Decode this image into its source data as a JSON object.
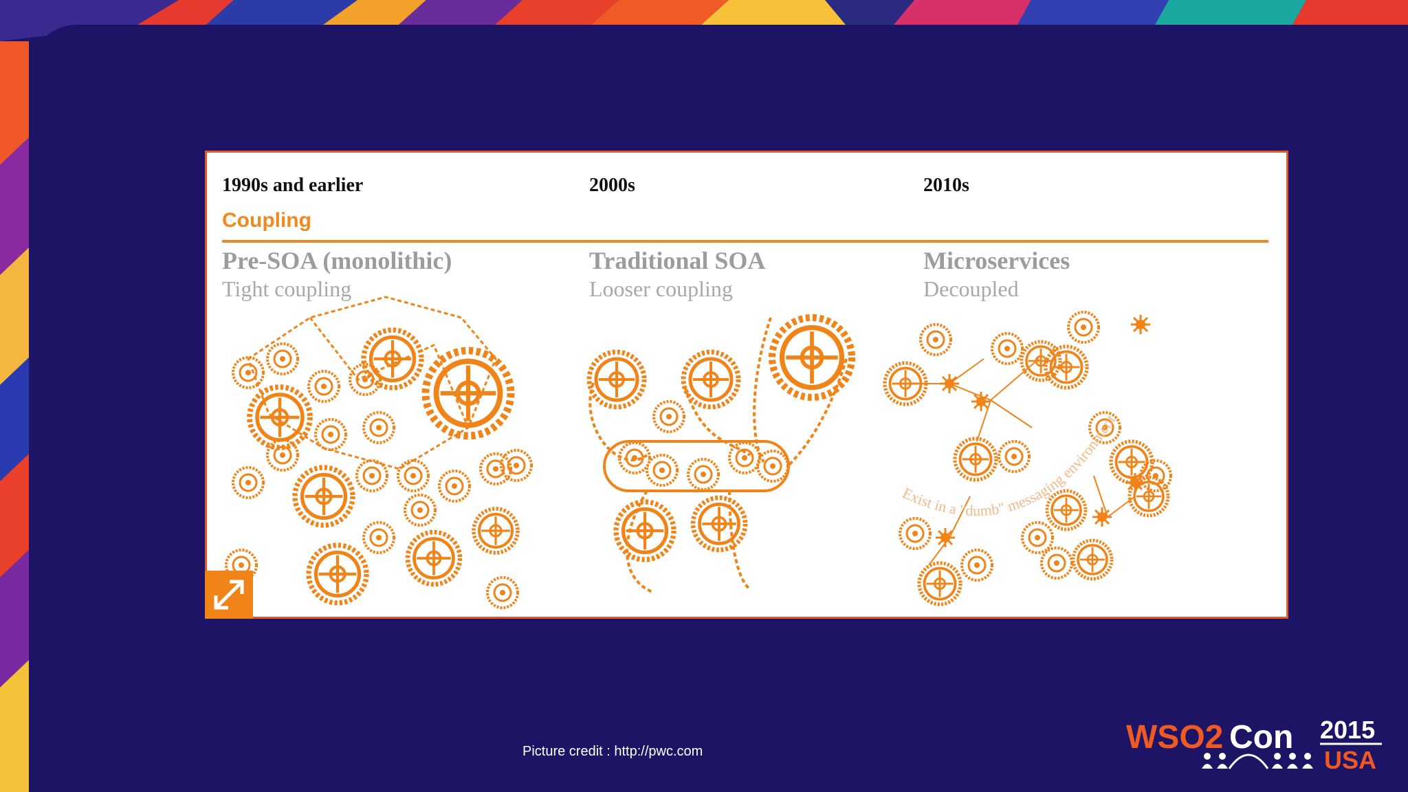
{
  "figure": {
    "eras": [
      "1990s and earlier",
      "2000s",
      "2010s"
    ],
    "section_label": "Coupling",
    "models": [
      {
        "title": "Pre-SOA (monolithic)",
        "subtitle": "Tight coupling"
      },
      {
        "title": "Traditional SOA",
        "subtitle": "Looser coupling"
      },
      {
        "title": "Microservices",
        "subtitle": "Decoupled"
      }
    ],
    "curved_caption": "Exist in a \"dumb\" messaging environment"
  },
  "footer": {
    "credit": "Picture credit : http://pwc.com"
  },
  "logo": {
    "wso2": "WSO2",
    "con": "Con",
    "year": "2015",
    "region": "USA"
  },
  "icons": {
    "expand": "expand-arrows-icon"
  },
  "colors": {
    "background": "#1d1466",
    "accent_orange": "#f08419",
    "border_red": "#e2582a"
  }
}
